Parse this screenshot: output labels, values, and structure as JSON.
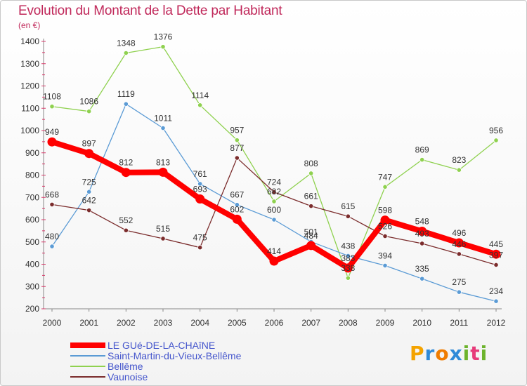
{
  "title": "Evolution du Montant de la Dette par Habitant",
  "unit_label": "(en €)",
  "logo_text": "Proxiti",
  "chart_data": {
    "type": "line",
    "title": "Evolution du Montant de la Dette par Habitant",
    "ylabel": "(en €)",
    "xlabel": "",
    "categories": [
      "2000",
      "2001",
      "2002",
      "2003",
      "2004",
      "2005",
      "2006",
      "2007",
      "2008",
      "2009",
      "2010",
      "2011",
      "2012"
    ],
    "ylim": [
      200,
      1400
    ],
    "yticks": [
      200,
      300,
      400,
      500,
      600,
      700,
      800,
      900,
      1000,
      1100,
      1200,
      1300,
      1400
    ],
    "grid": false,
    "legend_position": "bottom-left",
    "series": [
      {
        "name": "LE GUé-DE-LA-CHAîNE",
        "color": "#ff0000",
        "values": [
          949,
          897,
          812,
          813,
          693,
          602,
          414,
          484,
          383,
          598,
          548,
          496,
          445
        ]
      },
      {
        "name": "Saint-Martin-du-Vieux-Bellême",
        "color": "#5b9bd5",
        "values": [
          480,
          725,
          1119,
          1011,
          761,
          667,
          600,
          501,
          438,
          394,
          335,
          275,
          234
        ]
      },
      {
        "name": "Bellême",
        "color": "#8fd14f",
        "values": [
          1108,
          1086,
          1348,
          1376,
          1114,
          957,
          682,
          808,
          338,
          747,
          869,
          823,
          956
        ]
      },
      {
        "name": "Vaunoise",
        "color": "#7b2c2c",
        "values": [
          668,
          642,
          552,
          515,
          475,
          877,
          724,
          661,
          615,
          526,
          493,
          446,
          397
        ]
      }
    ]
  }
}
